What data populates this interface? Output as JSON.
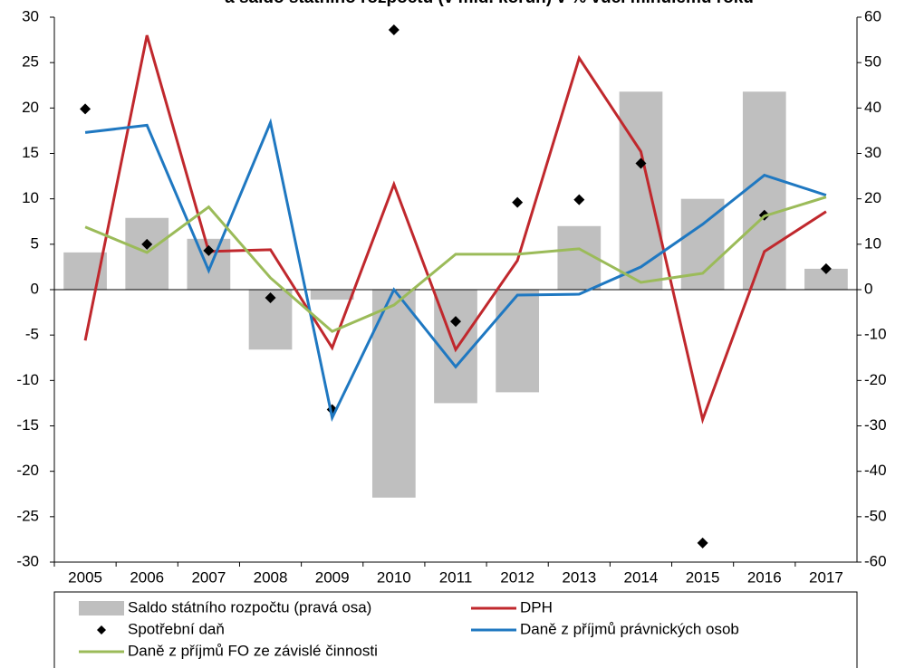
{
  "chart_data": {
    "type": "combo",
    "title": "a saldo státního rozpočtu (v mld. korun) v % vůči minulému roku",
    "categories": [
      "2005",
      "2006",
      "2007",
      "2008",
      "2009",
      "2010",
      "2011",
      "2012",
      "2013",
      "2014",
      "2015",
      "2016",
      "2017"
    ],
    "ylim": [
      -30,
      30
    ],
    "yticks": [
      -30,
      -25,
      -20,
      -15,
      -10,
      -5,
      0,
      5,
      10,
      15,
      20,
      25,
      30
    ],
    "y2lim": [
      -60,
      60
    ],
    "y2ticks": [
      -60,
      -50,
      -40,
      -30,
      -20,
      -10,
      0,
      10,
      20,
      30,
      40,
      50,
      60
    ],
    "grid": false,
    "legend": "bottom",
    "series": [
      {
        "name": "Saldo státního rozpočtu (pravá osa)",
        "type": "bar",
        "axis": "y2",
        "color": "#bfbfbf",
        "values": [
          8.2,
          15.8,
          11.2,
          -13.2,
          -2.2,
          -45.8,
          -25,
          -22.6,
          14,
          43.6,
          20,
          43.6,
          4.6
        ]
      },
      {
        "name": "DPH",
        "type": "line",
        "color": "#c0282d",
        "values": [
          -5.6,
          28,
          4.2,
          4.4,
          -6.4,
          11.6,
          -6.6,
          3.2,
          25.5,
          15.2,
          -14.3,
          4.2,
          8.6
        ]
      },
      {
        "name": "Spotřební daň",
        "type": "scatter",
        "color": "#000000",
        "values": [
          19.9,
          5,
          4.3,
          -0.9,
          -13.2,
          28.6,
          -3.5,
          9.6,
          9.9,
          13.9,
          -27.9,
          8.2,
          2.3
        ]
      },
      {
        "name": "Daně z příjmů právnických osob",
        "type": "line",
        "color": "#1f78c1",
        "values": [
          17.3,
          18.1,
          2.1,
          18.4,
          -14.1,
          0,
          -8.5,
          -0.6,
          -0.5,
          2.5,
          7.2,
          12.6,
          10.4
        ]
      },
      {
        "name": "Daně z příjmů FO ze závislé činnosti",
        "type": "line",
        "color": "#9bbb59",
        "values": [
          6.9,
          4.1,
          9.1,
          1.3,
          -4.6,
          -1.7,
          3.9,
          3.9,
          4.5,
          0.8,
          1.8,
          8.1,
          10.2
        ]
      }
    ]
  }
}
